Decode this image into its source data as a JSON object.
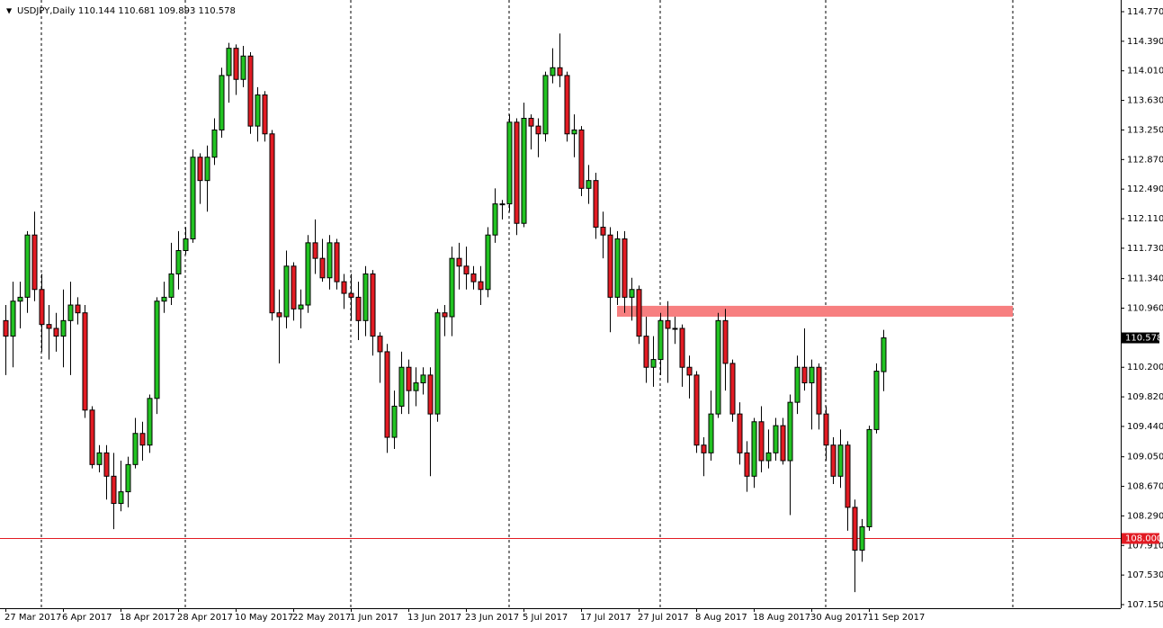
{
  "chart_data": {
    "type": "candlestick",
    "title": "USDJPY,Daily  110.144 110.681 109.893 110.578",
    "categories": [
      "27 Mar 2017",
      null,
      null,
      null,
      null,
      null,
      null,
      null,
      "6 Apr 2017",
      null,
      null,
      null,
      null,
      null,
      null,
      null,
      "18 Apr 2017",
      null,
      null,
      null,
      null,
      null,
      null,
      null,
      "28 Apr 2017",
      null,
      null,
      null,
      null,
      null,
      null,
      null,
      "10 May 2017",
      null,
      null,
      null,
      null,
      null,
      null,
      null,
      "22 May 2017",
      null,
      null,
      null,
      null,
      null,
      null,
      null,
      "1 Jun 2017",
      null,
      null,
      null,
      null,
      null,
      null,
      null,
      "13 Jun 2017",
      null,
      null,
      null,
      null,
      null,
      null,
      null,
      "23 Jun 2017",
      null,
      null,
      null,
      null,
      null,
      null,
      null,
      "5 Jul 2017",
      null,
      null,
      null,
      null,
      null,
      null,
      null,
      "17 Jul 2017",
      null,
      null,
      null,
      null,
      null,
      null,
      null,
      "27 Jul 2017",
      null,
      null,
      null,
      null,
      null,
      null,
      null,
      "8 Aug 2017",
      null,
      null,
      null,
      null,
      null,
      null,
      null,
      "18 Aug 2017",
      null,
      null,
      null,
      null,
      null,
      null,
      null,
      "30 Aug 2017",
      null,
      null,
      null,
      null,
      null,
      null,
      null,
      "11 Sep 2017",
      null,
      null
    ],
    "open": [
      110.8,
      110.6,
      111.05,
      111.1,
      111.9,
      111.2,
      110.75,
      110.7,
      110.6,
      110.8,
      111.0,
      110.9,
      109.65,
      108.95,
      109.1,
      108.8,
      108.45,
      108.6,
      108.95,
      109.35,
      109.2,
      109.8,
      111.05,
      111.1,
      111.4,
      111.7,
      111.85,
      112.9,
      112.6,
      112.9,
      113.25,
      113.95,
      114.3,
      113.9,
      114.2,
      113.3,
      113.7,
      113.2,
      110.9,
      110.85,
      111.5,
      110.95,
      111.0,
      111.8,
      111.6,
      111.35,
      111.8,
      111.3,
      111.15,
      111.1,
      110.8,
      111.4,
      110.6,
      110.4,
      109.3,
      109.7,
      110.2,
      109.9,
      110.0,
      110.1,
      109.6,
      110.9,
      110.85,
      111.6,
      111.5,
      111.4,
      111.3,
      111.2,
      111.9,
      112.3,
      112.3,
      113.35,
      112.05,
      113.4,
      113.3,
      113.2,
      113.95,
      114.05,
      113.95,
      113.2,
      113.25,
      112.5,
      112.6,
      112.0,
      111.9,
      111.1,
      111.85,
      111.1,
      111.2,
      110.6,
      110.2,
      110.3,
      110.8,
      110.7,
      110.7,
      110.2,
      110.1,
      109.2,
      109.1,
      109.6,
      110.8,
      110.25,
      109.6,
      109.1,
      108.8,
      109.5,
      109.0,
      109.1,
      109.45,
      109.0,
      109.75,
      110.2,
      110.0,
      110.2,
      109.6,
      109.2,
      108.8,
      109.2,
      108.4,
      107.85,
      108.15,
      109.4,
      110.144
    ],
    "high": [
      111.0,
      111.3,
      111.3,
      111.95,
      112.2,
      111.4,
      111.0,
      110.9,
      111.2,
      111.3,
      111.1,
      111.0,
      109.7,
      109.2,
      109.2,
      109.1,
      109.0,
      109.05,
      109.55,
      109.5,
      109.85,
      111.1,
      111.3,
      111.8,
      111.95,
      112.0,
      113.0,
      112.95,
      113.05,
      113.4,
      114.05,
      114.37,
      114.35,
      114.33,
      114.25,
      113.8,
      113.75,
      113.25,
      111.2,
      111.7,
      111.55,
      111.2,
      111.9,
      112.1,
      111.85,
      111.9,
      111.85,
      111.4,
      111.4,
      111.3,
      111.5,
      111.45,
      110.65,
      110.5,
      109.9,
      110.4,
      110.3,
      110.2,
      110.2,
      110.2,
      110.95,
      111.0,
      111.75,
      111.8,
      111.75,
      111.5,
      111.5,
      112.0,
      112.5,
      112.35,
      113.45,
      113.4,
      113.6,
      113.45,
      113.4,
      114.0,
      114.3,
      114.49,
      114.0,
      113.45,
      113.3,
      112.8,
      112.7,
      112.2,
      112.0,
      111.95,
      111.95,
      111.35,
      111.25,
      110.85,
      110.6,
      110.9,
      111.05,
      110.85,
      110.75,
      110.35,
      110.15,
      109.3,
      109.9,
      110.9,
      110.95,
      110.3,
      109.75,
      109.25,
      109.55,
      109.7,
      109.4,
      109.55,
      109.55,
      109.85,
      110.35,
      110.7,
      110.3,
      110.25,
      109.7,
      109.3,
      109.4,
      109.25,
      108.5,
      108.25,
      109.45,
      110.25,
      110.681
    ],
    "low": [
      110.1,
      110.2,
      110.7,
      110.9,
      111.05,
      110.4,
      110.3,
      110.4,
      110.2,
      110.1,
      110.75,
      109.55,
      108.9,
      108.85,
      108.5,
      108.12,
      108.35,
      108.4,
      108.9,
      109.0,
      109.1,
      109.6,
      110.9,
      111.0,
      111.2,
      111.65,
      111.8,
      112.3,
      112.2,
      112.8,
      113.15,
      113.6,
      113.7,
      113.8,
      113.2,
      113.1,
      113.1,
      110.8,
      110.25,
      110.7,
      110.8,
      110.7,
      110.9,
      111.4,
      111.3,
      111.2,
      111.2,
      110.95,
      110.8,
      110.55,
      110.6,
      110.35,
      110.0,
      109.1,
      109.15,
      109.6,
      109.6,
      109.7,
      109.85,
      108.8,
      109.5,
      110.6,
      110.6,
      111.2,
      111.2,
      111.2,
      111.0,
      111.1,
      111.8,
      112.1,
      112.2,
      111.9,
      112.0,
      113.0,
      112.9,
      113.1,
      113.85,
      113.8,
      113.1,
      112.9,
      112.4,
      112.3,
      111.85,
      111.6,
      110.65,
      111.0,
      110.9,
      110.8,
      110.5,
      110.0,
      109.95,
      110.1,
      110.0,
      110.5,
      109.95,
      109.8,
      109.1,
      108.8,
      109.0,
      109.55,
      109.9,
      109.5,
      108.95,
      108.6,
      108.65,
      108.85,
      108.9,
      109.0,
      108.95,
      108.3,
      109.6,
      109.9,
      109.4,
      109.4,
      109.0,
      108.7,
      108.65,
      108.1,
      107.31,
      107.7,
      108.1,
      109.35,
      109.893
    ],
    "close": [
      110.6,
      111.05,
      111.1,
      111.9,
      111.2,
      110.75,
      110.7,
      110.6,
      110.8,
      111.0,
      110.9,
      109.65,
      108.95,
      109.1,
      108.8,
      108.45,
      108.6,
      108.95,
      109.35,
      109.2,
      109.8,
      111.05,
      111.1,
      111.4,
      111.7,
      111.85,
      112.9,
      112.6,
      112.9,
      113.25,
      113.95,
      114.3,
      113.9,
      114.2,
      113.3,
      113.7,
      113.2,
      110.9,
      110.85,
      111.5,
      110.95,
      111.0,
      111.8,
      111.6,
      111.35,
      111.8,
      111.3,
      111.15,
      111.1,
      110.8,
      111.4,
      110.6,
      110.4,
      109.3,
      109.7,
      110.2,
      109.9,
      110.0,
      110.1,
      109.6,
      110.9,
      110.85,
      111.6,
      111.5,
      111.4,
      111.3,
      111.2,
      111.9,
      112.3,
      112.3,
      113.35,
      112.05,
      113.4,
      113.3,
      113.2,
      113.95,
      114.05,
      113.95,
      113.2,
      113.25,
      112.5,
      112.6,
      112.0,
      111.9,
      111.1,
      111.85,
      111.1,
      111.2,
      110.6,
      110.2,
      110.3,
      110.8,
      110.7,
      110.7,
      110.2,
      110.1,
      109.2,
      109.1,
      109.6,
      110.8,
      110.25,
      109.6,
      109.1,
      108.8,
      109.5,
      109.0,
      109.1,
      109.45,
      109.0,
      109.75,
      110.2,
      110.0,
      110.2,
      109.6,
      109.2,
      108.8,
      109.2,
      108.4,
      107.85,
      108.15,
      109.4,
      110.15,
      110.578
    ],
    "up_color": "#22c322",
    "down_color": "#e21b23",
    "ylim": [
      107.15,
      114.77
    ],
    "yticks": [
      {
        "value": 114.77,
        "label": "114.770"
      },
      {
        "value": 114.39,
        "label": "114.390"
      },
      {
        "value": 114.01,
        "label": "114.010"
      },
      {
        "value": 113.63,
        "label": "113.630"
      },
      {
        "value": 113.25,
        "label": "113.250"
      },
      {
        "value": 112.87,
        "label": "112.870"
      },
      {
        "value": 112.49,
        "label": "112.490"
      },
      {
        "value": 112.11,
        "label": "112.110"
      },
      {
        "value": 111.73,
        "label": "111.730"
      },
      {
        "value": 111.34,
        "label": "111.340"
      },
      {
        "value": 110.96,
        "label": "110.960"
      },
      {
        "value": 110.2,
        "label": "110.200"
      },
      {
        "value": 109.82,
        "label": "109.820"
      },
      {
        "value": 109.44,
        "label": "109.440"
      },
      {
        "value": 109.05,
        "label": "109.050"
      },
      {
        "value": 108.67,
        "label": "108.670"
      },
      {
        "value": 108.29,
        "label": "108.290"
      },
      {
        "value": 107.91,
        "label": "107.910"
      },
      {
        "value": 107.53,
        "label": "107.530"
      },
      {
        "value": 107.15,
        "label": "107.150"
      }
    ],
    "hline": {
      "value": 108,
      "label": "108.000",
      "color": "#e21b23"
    },
    "zone": {
      "low": 110.85,
      "high": 110.99,
      "color": "#f77f80"
    }
  }
}
